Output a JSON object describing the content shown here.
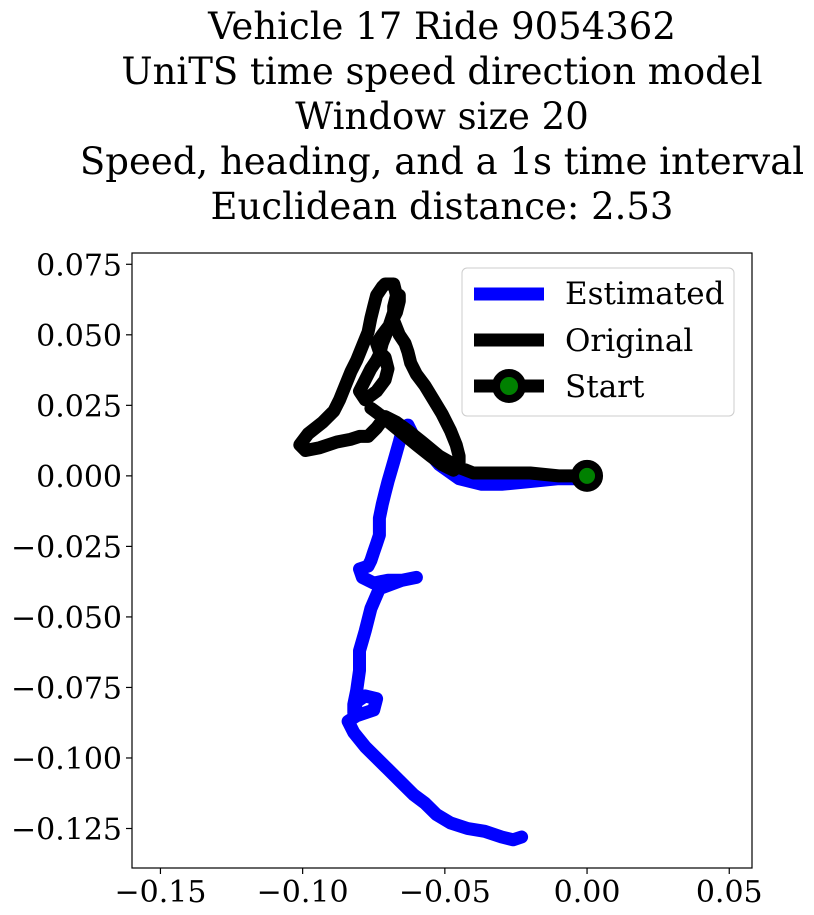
{
  "title_lines": [
    "Vehicle 17 Ride 9054362",
    "UniTS time speed direction model",
    "Window size 20",
    "Speed, heading, and a 1s time interval",
    "Euclidean distance: 2.53"
  ],
  "chart_data": {
    "type": "line",
    "title": "Vehicle 17 Ride 9054362 / UniTS time speed direction model / Window size 20 / Speed, heading, and a 1s time interval / Euclidean distance: 2.53",
    "xlabel": "",
    "ylabel": "",
    "xlim": [
      -0.16,
      0.058
    ],
    "ylim": [
      -0.139,
      0.079
    ],
    "xticks": [
      -0.15,
      -0.1,
      -0.05,
      0.0,
      0.05
    ],
    "xtick_labels": [
      "−0.15",
      "−0.10",
      "−0.05",
      "0.00",
      "0.05"
    ],
    "yticks": [
      0.075,
      0.05,
      0.025,
      0.0,
      -0.025,
      -0.05,
      -0.075,
      -0.1,
      -0.125
    ],
    "ytick_labels": [
      "0.075",
      "0.050",
      "0.025",
      "0.000",
      "−0.025",
      "−0.050",
      "−0.075",
      "−0.100",
      "−0.125"
    ],
    "grid": false,
    "legend_position": "top-right",
    "series": [
      {
        "name": "Estimated",
        "color": "#0000ff",
        "x": [
          0.0,
          -0.01,
          -0.02,
          -0.03,
          -0.037,
          -0.045,
          -0.052,
          -0.057,
          -0.061,
          -0.063,
          -0.065,
          -0.066,
          -0.068,
          -0.07,
          -0.071,
          -0.072,
          -0.073,
          -0.073,
          -0.074,
          -0.075,
          -0.076,
          -0.077,
          -0.08,
          -0.079,
          -0.075,
          -0.07,
          -0.065,
          -0.06,
          -0.065,
          -0.073,
          -0.076,
          -0.078,
          -0.08,
          -0.08,
          -0.081,
          -0.082,
          -0.082,
          -0.081,
          -0.078,
          -0.074,
          -0.075,
          -0.081,
          -0.084,
          -0.082,
          -0.078,
          -0.074,
          -0.07,
          -0.066,
          -0.061,
          -0.057,
          -0.053,
          -0.048,
          -0.042,
          -0.036,
          -0.03,
          -0.026,
          -0.023
        ],
        "y": [
          -0.001,
          -0.001,
          -0.002,
          -0.003,
          -0.003,
          -0.001,
          0.004,
          0.01,
          0.014,
          0.018,
          0.016,
          0.012,
          0.005,
          -0.002,
          -0.006,
          -0.01,
          -0.015,
          -0.021,
          -0.024,
          -0.027,
          -0.03,
          -0.032,
          -0.033,
          -0.036,
          -0.038,
          -0.037,
          -0.037,
          -0.036,
          -0.037,
          -0.04,
          -0.047,
          -0.055,
          -0.062,
          -0.069,
          -0.076,
          -0.081,
          -0.084,
          -0.08,
          -0.078,
          -0.079,
          -0.083,
          -0.085,
          -0.087,
          -0.091,
          -0.096,
          -0.1,
          -0.104,
          -0.108,
          -0.113,
          -0.116,
          -0.12,
          -0.123,
          -0.125,
          -0.126,
          -0.128,
          -0.129,
          -0.128
        ]
      },
      {
        "name": "Original",
        "color": "#000000",
        "x": [
          0.0,
          -0.01,
          -0.02,
          -0.03,
          -0.04,
          -0.045,
          -0.052,
          -0.058,
          -0.063,
          -0.067,
          -0.071,
          -0.074,
          -0.077,
          -0.08,
          -0.083,
          -0.088,
          -0.094,
          -0.099,
          -0.101,
          -0.098,
          -0.093,
          -0.089,
          -0.087,
          -0.085,
          -0.083,
          -0.081,
          -0.079,
          -0.077,
          -0.076,
          -0.075,
          -0.074,
          -0.072,
          -0.071,
          -0.068,
          -0.067,
          -0.068,
          -0.07,
          -0.072,
          -0.073,
          -0.074,
          -0.076,
          -0.078,
          -0.08,
          -0.078,
          -0.074,
          -0.071,
          -0.07,
          -0.071,
          -0.073,
          -0.074,
          -0.072,
          -0.069,
          -0.067,
          -0.066,
          -0.066,
          -0.067,
          -0.068,
          -0.068,
          -0.066,
          -0.064,
          -0.063,
          -0.062,
          -0.06,
          -0.057,
          -0.054,
          -0.051,
          -0.048,
          -0.046,
          -0.045,
          -0.045,
          -0.047,
          -0.051,
          -0.055,
          -0.06,
          -0.066,
          -0.072,
          -0.076
        ],
        "y": [
          0.0,
          0.0,
          0.001,
          0.001,
          0.001,
          0.003,
          0.007,
          0.012,
          0.016,
          0.019,
          0.021,
          0.017,
          0.014,
          0.014,
          0.013,
          0.012,
          0.01,
          0.009,
          0.011,
          0.015,
          0.019,
          0.023,
          0.027,
          0.032,
          0.037,
          0.041,
          0.046,
          0.051,
          0.056,
          0.06,
          0.064,
          0.067,
          0.068,
          0.068,
          0.064,
          0.058,
          0.052,
          0.047,
          0.043,
          0.041,
          0.038,
          0.034,
          0.03,
          0.027,
          0.03,
          0.034,
          0.038,
          0.042,
          0.044,
          0.047,
          0.05,
          0.054,
          0.058,
          0.062,
          0.064,
          0.064,
          0.06,
          0.055,
          0.05,
          0.047,
          0.044,
          0.04,
          0.036,
          0.032,
          0.027,
          0.022,
          0.016,
          0.011,
          0.007,
          0.004,
          0.002,
          0.004,
          0.007,
          0.011,
          0.016,
          0.021,
          0.024
        ]
      }
    ],
    "start_marker": {
      "name": "Start",
      "x": 0.0,
      "y": 0.0,
      "face_color": "#008000",
      "edge_color": "#000000"
    }
  },
  "legend": {
    "estimated_label": "Estimated",
    "original_label": "Original",
    "start_label": "Start"
  }
}
